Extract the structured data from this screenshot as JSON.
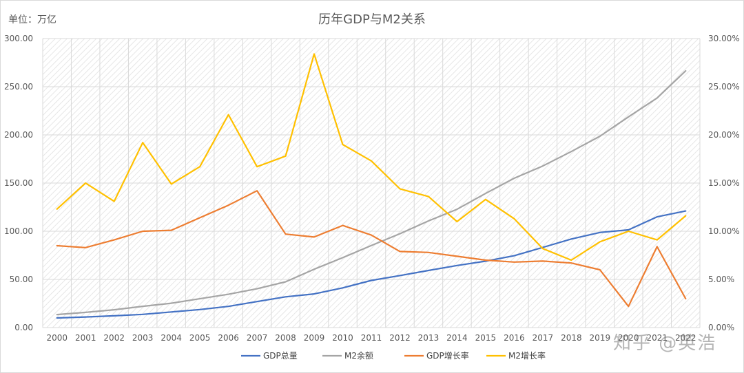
{
  "unit_label": "单位：万亿",
  "watermark": "知乎 @英浩",
  "colors": {
    "gdp": "#4472c4",
    "m2": "#a5a5a5",
    "gdp_growth": "#ed7d31",
    "m2_growth": "#ffc000",
    "grid": "#d9d9d9",
    "hatch": "#e3e3e3"
  },
  "chart_data": {
    "type": "line",
    "title": "历年GDP与M2关系",
    "categories": [
      "2000",
      "2001",
      "2002",
      "2003",
      "2004",
      "2005",
      "2006",
      "2007",
      "2008",
      "2009",
      "2010",
      "2011",
      "2012",
      "2013",
      "2014",
      "2015",
      "2016",
      "2017",
      "2018",
      "2019",
      "2020",
      "2021",
      "2022"
    ],
    "y_left": {
      "ylim": [
        0,
        300
      ],
      "ticks": [
        "0.00",
        "50.00",
        "100.00",
        "150.00",
        "200.00",
        "250.00",
        "300.00"
      ]
    },
    "y_right": {
      "ylim": [
        0,
        30
      ],
      "ticks": [
        "0.00%",
        "5.00%",
        "10.00%",
        "15.00%",
        "20.00%",
        "25.00%",
        "30.00%"
      ]
    },
    "series": [
      {
        "name": "GDP总量",
        "axis": "left",
        "color_key": "gdp",
        "values": [
          10.0,
          11.0,
          12.2,
          13.7,
          16.2,
          18.7,
          22.0,
          27.0,
          31.9,
          34.9,
          41.2,
          48.9,
          54.0,
          59.3,
          64.4,
          68.9,
          74.6,
          83.2,
          91.9,
          98.7,
          101.4,
          114.9,
          121.0
        ]
      },
      {
        "name": "M2余额",
        "axis": "left",
        "color_key": "m2",
        "values": [
          13.5,
          15.8,
          18.5,
          22.1,
          25.3,
          29.9,
          34.6,
          40.3,
          47.5,
          60.6,
          72.6,
          85.2,
          97.4,
          110.7,
          122.8,
          139.2,
          155.0,
          167.7,
          182.7,
          198.6,
          218.7,
          238.3,
          266.4
        ]
      },
      {
        "name": "GDP增长率",
        "axis": "right",
        "color_key": "gdp_growth",
        "values": [
          8.5,
          8.3,
          9.1,
          10.0,
          10.1,
          11.4,
          12.7,
          14.2,
          9.7,
          9.4,
          10.6,
          9.6,
          7.9,
          7.8,
          7.4,
          7.0,
          6.8,
          6.9,
          6.7,
          6.0,
          2.2,
          8.4,
          3.0
        ]
      },
      {
        "name": "M2增长率",
        "axis": "right",
        "color_key": "m2_growth",
        "values": [
          12.3,
          15.0,
          13.1,
          19.2,
          14.9,
          16.7,
          22.1,
          16.7,
          17.8,
          28.4,
          19.0,
          17.3,
          14.4,
          13.6,
          11.0,
          13.3,
          11.3,
          8.2,
          7.0,
          8.9,
          10.0,
          9.1,
          11.6
        ]
      }
    ],
    "legend_position": "bottom-center"
  }
}
